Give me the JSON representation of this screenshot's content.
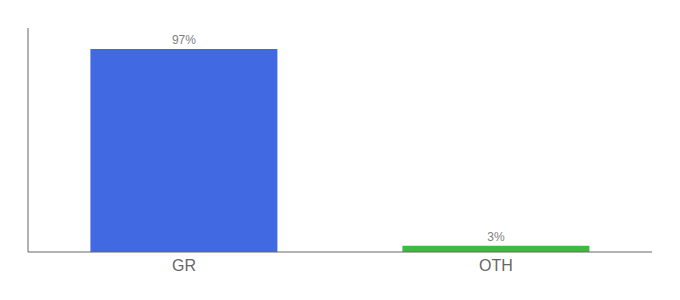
{
  "chart_data": {
    "type": "bar",
    "categories": [
      "GR",
      "OTH"
    ],
    "values": [
      97,
      3
    ],
    "value_labels": [
      "97%",
      "3%"
    ],
    "colors": [
      "#4169e1",
      "#3dbb3d"
    ],
    "ylim": [
      0,
      107
    ],
    "data_labels": true,
    "tick_labels": "x"
  }
}
